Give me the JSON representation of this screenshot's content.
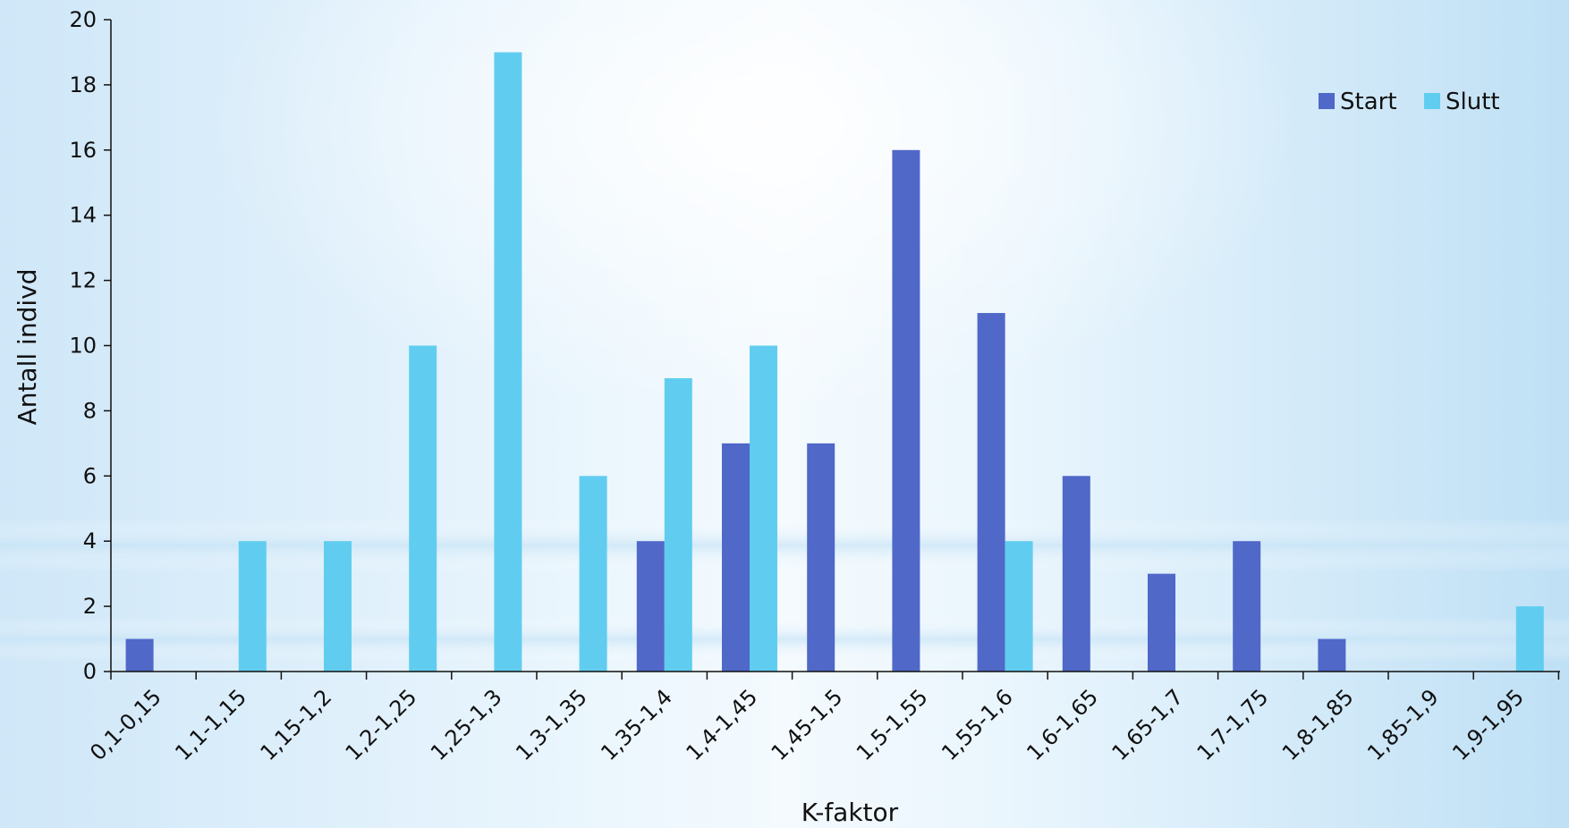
{
  "chart_data": {
    "type": "bar",
    "categories": [
      "0,1-0,15",
      "1,1-1,15",
      "1,15-1,2",
      "1,2-1,25",
      "1,25-1,3",
      "1,3-1,35",
      "1,35-1,4",
      "1,4-1,45",
      "1,45-1,5",
      "1,5-1,55",
      "1,55-1,6",
      "1,6-1,65",
      "1,65-1,7",
      "1,7-1,75",
      "1,8-1,85",
      "1,85-1,9",
      "1,9-1,95"
    ],
    "series": [
      {
        "name": "Start",
        "color": "#5068c8",
        "values": [
          1,
          0,
          0,
          0,
          0,
          0,
          4,
          7,
          7,
          16,
          11,
          6,
          3,
          4,
          1,
          0,
          0
        ]
      },
      {
        "name": "Slutt",
        "color": "#60cdf0",
        "values": [
          0,
          4,
          4,
          10,
          19,
          6,
          9,
          10,
          0,
          0,
          4,
          0,
          0,
          0,
          0,
          0,
          2
        ]
      }
    ],
    "title": "",
    "xlabel": "K-faktor",
    "ylabel": "Antall indivd",
    "ylim": [
      0,
      20
    ],
    "yticks": [
      0,
      2,
      4,
      6,
      8,
      10,
      12,
      14,
      16,
      18,
      20
    ],
    "grid": false,
    "legend_position": "top-right"
  }
}
